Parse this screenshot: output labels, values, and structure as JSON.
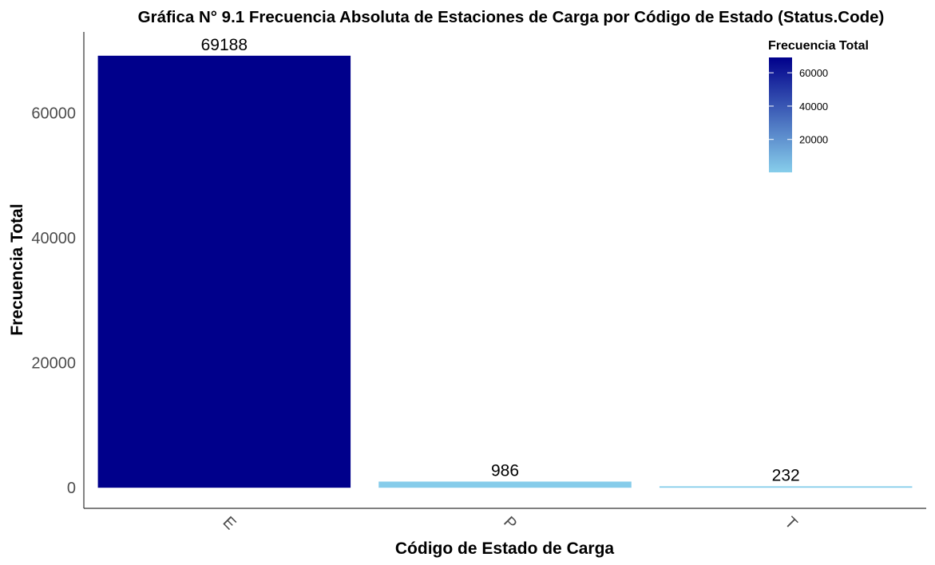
{
  "chart_data": {
    "type": "bar",
    "title": "Gráfica N° 9.1 Frecuencia Absoluta de Estaciones de Carga por Código de Estado (Status.Code)",
    "xlabel": "Código de Estado de Carga",
    "ylabel": "Frecuencia Total",
    "categories": [
      "E",
      "P",
      "T"
    ],
    "values": [
      69188,
      986,
      232
    ],
    "data_labels": [
      "69188",
      "986",
      "232"
    ],
    "ylim": [
      -3300,
      73000
    ],
    "yticks": [
      0,
      20000,
      40000,
      60000
    ],
    "ytick_labels": [
      "0",
      "20000",
      "40000",
      "60000"
    ],
    "x_tick_rotation": 45,
    "grid": false,
    "legend": {
      "title": "Frecuencia Total",
      "type": "colorbar",
      "position": "top-right",
      "range": [
        232,
        69188
      ],
      "ticks": [
        20000,
        40000,
        60000
      ],
      "tick_labels": [
        "20000",
        "40000",
        "60000"
      ],
      "color_low": "#87ceeb",
      "color_high": "#00008b"
    }
  }
}
